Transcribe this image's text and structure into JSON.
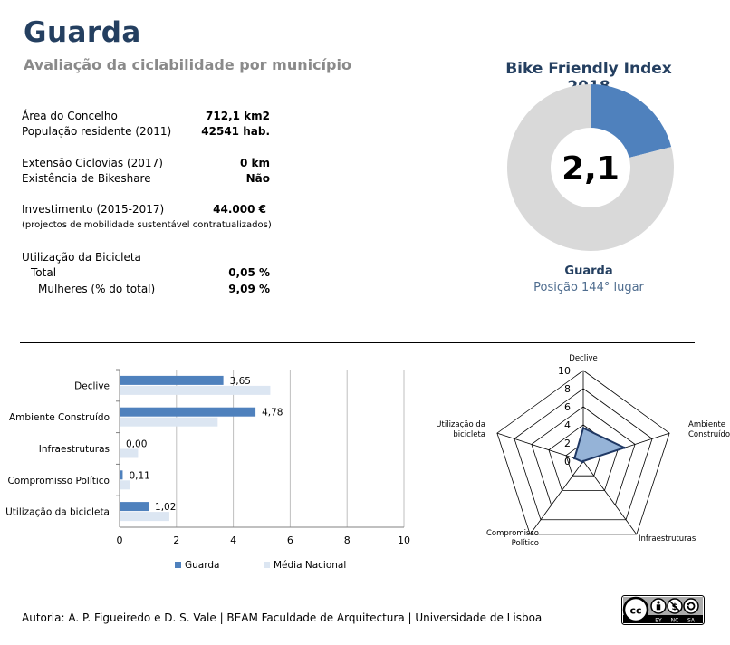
{
  "header": {
    "title": "Guarda",
    "subtitle": "Avaliação da ciclabilidade por município"
  },
  "stats": [
    {
      "label": "Área do Concelho",
      "value": "712,1 km2"
    },
    {
      "label": "População residente (2011)",
      "value": "42541 hab."
    },
    {
      "label": "Extensão Ciclovias (2017)",
      "value": "0 km"
    },
    {
      "label": "Existência de Bikeshare",
      "value": "Não"
    },
    {
      "label": "Investimento (2015-2017)",
      "value": "44.000 €"
    },
    {
      "label": "(projectos de mobilidade sustentável contratualizados)",
      "value": ""
    },
    {
      "label": "Utilização da Bicicleta",
      "value": ""
    },
    {
      "label": "Total",
      "value": "0,05 %"
    },
    {
      "label": "Mulheres (% do total)",
      "value": "9,09 %"
    }
  ],
  "index_panel": {
    "title": "Bike Friendly Index 2018",
    "center_value": "2,1",
    "municipality": "Guarda",
    "rank": "Posição 144° lugar"
  },
  "footer": {
    "credit": "Autoria: A. P. Figueiredo e D. S. Vale | BEAM Faculdade de Arquitectura | Universidade de Lisboa",
    "license_icons": [
      "cc-icon",
      "by-icon",
      "nc-icon",
      "sa-icon"
    ],
    "license_labels": [
      "BY",
      "NC",
      "SA"
    ]
  },
  "chart_data": [
    {
      "type": "pie",
      "title": "Bike Friendly Index 2018",
      "center_label": "2,1",
      "values": [
        2.1,
        7.9
      ],
      "max": 10,
      "colors": [
        "#4f81bd",
        "#d9d9d9"
      ]
    },
    {
      "type": "bar",
      "orientation": "horizontal",
      "categories": [
        "Declive",
        "Ambiente Construído",
        "Infraestruturas",
        "Compromisso Político",
        "Utilização da bicicleta"
      ],
      "series": [
        {
          "name": "Guarda",
          "values": [
            3.65,
            4.78,
            0.0,
            0.11,
            1.02
          ],
          "labels": [
            "3,65",
            "4,78",
            "0,00",
            "0,11",
            "1,02"
          ],
          "color": "#4f81bd"
        },
        {
          "name": "Média Nacional",
          "values": [
            5.3,
            3.45,
            0.65,
            0.35,
            1.75
          ],
          "color": "#dce6f2"
        }
      ],
      "xlim": [
        0,
        10
      ],
      "xticks": [
        "0",
        "2",
        "4",
        "6",
        "8",
        "10"
      ],
      "legend": "bottom",
      "grid": true
    },
    {
      "type": "radar",
      "axes": [
        "Declive",
        "Ambiente Construído",
        "Infraestruturas",
        "Compromisso Político",
        "Utilização da bicicleta"
      ],
      "axis_labels": [
        "Declive",
        "Ambiente Construído",
        "Infraestruturas",
        "Compromisso Político",
        "Utilização da bicicleta"
      ],
      "series": [
        {
          "name": "Guarda",
          "values": [
            3.65,
            4.78,
            0.0,
            0.11,
            1.02
          ],
          "color": "#1f3864",
          "fill": "#95b3d7"
        }
      ],
      "rlim": [
        0,
        10
      ],
      "rticks": [
        "0",
        "2",
        "4",
        "6",
        "8",
        "10"
      ]
    }
  ]
}
